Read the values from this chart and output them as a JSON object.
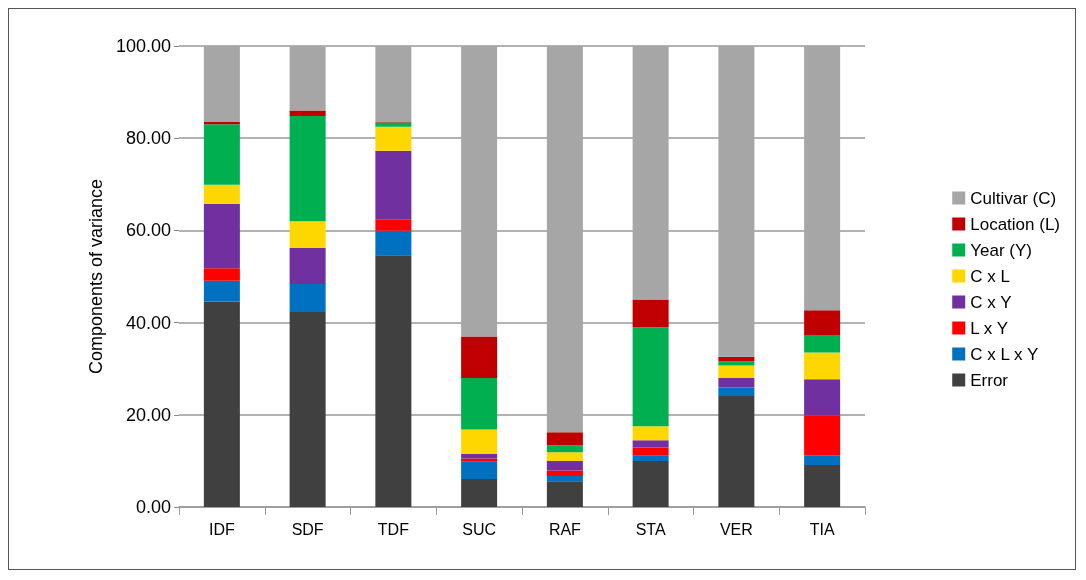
{
  "chart_data": {
    "type": "bar",
    "stacked": true,
    "ylabel": "Components of variance",
    "categories": [
      "IDF",
      "SDF",
      "TDF",
      "SUC",
      "RAF",
      "STA",
      "VER",
      "TIA"
    ],
    "series": [
      {
        "name": "Error",
        "color": "#404040",
        "values": [
          44.6,
          42.3,
          54.6,
          6.1,
          5.6,
          10.0,
          24.1,
          9.1
        ]
      },
      {
        "name": "C x L x Y",
        "color": "#0070c0",
        "values": [
          4.5,
          6.1,
          5.3,
          3.7,
          1.1,
          1.1,
          1.8,
          2.1
        ]
      },
      {
        "name": "L x Y",
        "color": "#ff0000",
        "values": [
          2.7,
          0,
          2.5,
          0.7,
          1.2,
          1.8,
          0,
          8.7
        ]
      },
      {
        "name": "C x Y",
        "color": "#7030a0",
        "values": [
          14.0,
          7.8,
          14.9,
          1.0,
          2.1,
          1.6,
          2.1,
          7.8
        ]
      },
      {
        "name": "C x L",
        "color": "#ffd700",
        "values": [
          4.1,
          5.8,
          5.2,
          5.3,
          1.9,
          3.0,
          2.7,
          5.8
        ]
      },
      {
        "name": "Year (Y)",
        "color": "#00b050",
        "values": [
          13.1,
          22.8,
          0.9,
          11.2,
          1.5,
          21.5,
          0.9,
          3.8
        ]
      },
      {
        "name": "Location (L)",
        "color": "#c00000",
        "values": [
          0.5,
          1.2,
          0.1,
          9.0,
          2.8,
          6.0,
          1.0,
          5.4
        ]
      },
      {
        "name": "Cultivar (C)",
        "color": "#a6a6a6",
        "values": [
          16.5,
          14.0,
          16.5,
          63.0,
          83.8,
          55.0,
          67.4,
          57.3
        ]
      }
    ],
    "ylim": [
      0,
      100
    ],
    "yticks": [
      {
        "value": 0,
        "label": "0.00"
      },
      {
        "value": 20,
        "label": "20.00"
      },
      {
        "value": 40,
        "label": "40.00"
      },
      {
        "value": 60,
        "label": "60.00"
      },
      {
        "value": 80,
        "label": "80.00"
      },
      {
        "value": 100,
        "label": "100.00"
      }
    ],
    "grid": "y",
    "legend": "right"
  }
}
